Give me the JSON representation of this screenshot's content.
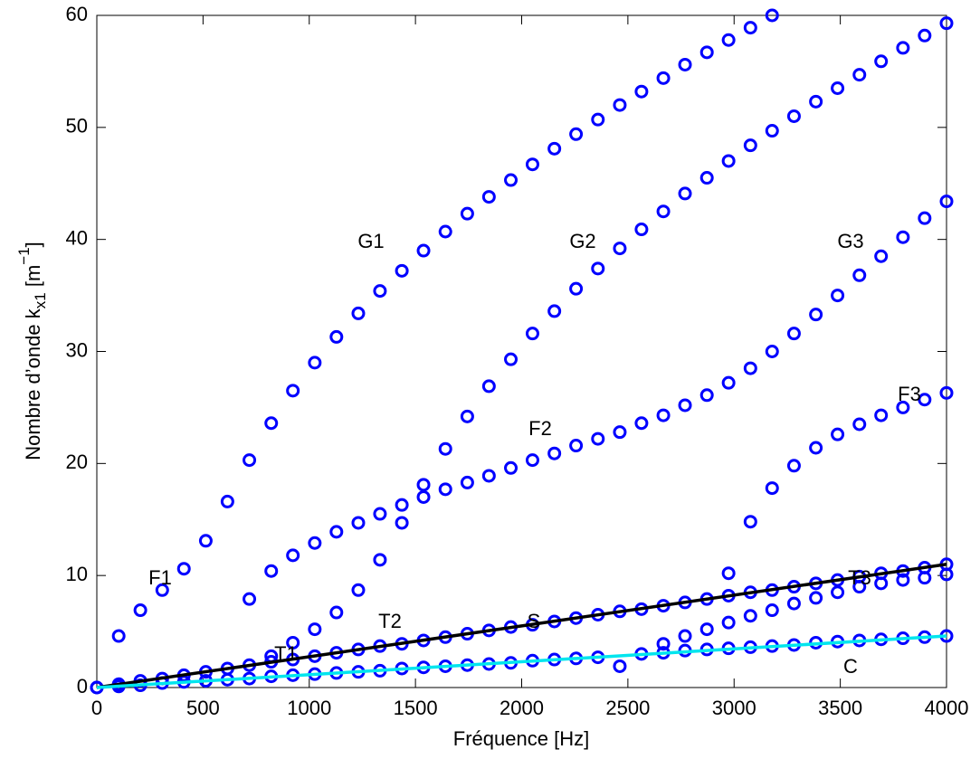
{
  "chart_data": {
    "type": "scatter",
    "xlabel": "Fréquence [Hz]",
    "ylabel": [
      "Nombre d’onde k",
      "x1",
      " [m",
      "−1",
      "]"
    ],
    "xlim": [
      0,
      4000
    ],
    "ylim": [
      0,
      60
    ],
    "xticks": [
      0,
      500,
      1000,
      1500,
      2000,
      2500,
      3000,
      3500,
      4000
    ],
    "yticks": [
      0,
      10,
      20,
      30,
      40,
      50,
      60
    ],
    "grid": false,
    "marker_color": "#0000ff",
    "series": [
      {
        "color": "#0000ff",
        "x": [
          103,
          205,
          308,
          410,
          513,
          615,
          718,
          821,
          923,
          1026,
          1128,
          1231,
          1333,
          1436,
          1538,
          1641,
          1744,
          1846,
          1949,
          2051,
          2154,
          2256,
          2359,
          2462,
          2564,
          2667,
          2769,
          2872,
          2974,
          3077,
          3179
        ],
        "values": [
          4.6,
          6.9,
          8.7,
          10.6,
          13.1,
          16.6,
          20.3,
          23.6,
          26.5,
          29.0,
          31.3,
          33.4,
          35.4,
          37.2,
          39.0,
          40.7,
          42.3,
          43.8,
          45.3,
          46.7,
          48.1,
          49.4,
          50.7,
          52.0,
          53.2,
          54.4,
          55.6,
          56.7,
          57.8,
          58.9,
          60.0
        ]
      },
      {
        "color": "#0000ff",
        "x": [
          718,
          821,
          923,
          1026,
          1128,
          1231,
          1333,
          1436,
          1538,
          1641,
          1744,
          1846,
          1949,
          2051,
          2154,
          2256,
          2359,
          2462,
          2564,
          2667,
          2769,
          2872,
          2974,
          3077,
          3179,
          3282,
          3385,
          3487,
          3590,
          3692,
          3795,
          3897,
          4000
        ],
        "values": [
          7.9,
          10.4,
          11.8,
          12.9,
          13.9,
          14.7,
          15.5,
          16.3,
          17.0,
          17.7,
          18.3,
          18.9,
          19.6,
          20.3,
          20.9,
          21.6,
          22.2,
          22.8,
          23.6,
          24.3,
          25.2,
          26.1,
          27.2,
          28.5,
          30.0,
          31.6,
          33.3,
          35.0,
          36.8,
          38.5,
          40.2,
          41.9,
          43.4
        ]
      },
      {
        "color": "#0000ff",
        "x": [
          821,
          923,
          1026,
          1128,
          1231,
          1333,
          1436,
          1538,
          1641,
          1744,
          1846,
          1949,
          2051,
          2154,
          2256,
          2359,
          2462,
          2564,
          2667,
          2769,
          2872,
          2974,
          3077,
          3179,
          3282,
          3385,
          3487,
          3590,
          3692,
          3795,
          3897,
          4000
        ],
        "values": [
          2.8,
          4.0,
          5.2,
          6.7,
          8.7,
          11.4,
          14.7,
          18.1,
          21.3,
          24.2,
          26.9,
          29.3,
          31.6,
          33.6,
          35.6,
          37.4,
          39.2,
          40.9,
          42.5,
          44.1,
          45.5,
          47.0,
          48.4,
          49.7,
          51.0,
          52.3,
          53.5,
          54.7,
          55.9,
          57.1,
          58.2,
          59.3
        ]
      },
      {
        "color": "#0000ff",
        "x": [
          2974,
          3077,
          3179,
          3282,
          3385,
          3487,
          3590,
          3692,
          3795,
          3897,
          4000
        ],
        "values": [
          10.2,
          14.8,
          17.8,
          19.8,
          21.4,
          22.6,
          23.5,
          24.3,
          25.0,
          25.7,
          26.3
        ]
      },
      {
        "color": "#0000ff",
        "x": [
          0,
          103,
          205,
          308,
          410,
          513,
          615,
          718,
          821,
          923,
          1026,
          1128,
          1231,
          1333,
          1436,
          1538,
          1641,
          1744,
          1846,
          1949,
          2051,
          2154,
          2256,
          2359,
          2462,
          2564,
          2667,
          2769,
          2872,
          2974,
          3077,
          3179,
          3282,
          3385,
          3487,
          3590,
          3692,
          3795,
          3897,
          4000
        ],
        "values": [
          0,
          0.3,
          0.6,
          0.8,
          1.1,
          1.4,
          1.7,
          2.0,
          2.3,
          2.5,
          2.8,
          3.1,
          3.4,
          3.7,
          3.9,
          4.2,
          4.5,
          4.8,
          5.1,
          5.4,
          5.6,
          5.9,
          6.2,
          6.5,
          6.8,
          7.0,
          7.3,
          7.6,
          7.9,
          8.2,
          8.5,
          8.7,
          9.0,
          9.3,
          9.6,
          9.9,
          10.2,
          10.4,
          10.7,
          11.0
        ]
      },
      {
        "color": "#0000ff",
        "x": [
          0,
          103,
          205,
          308,
          410,
          513,
          615,
          718,
          821,
          923,
          1026,
          1128,
          1231,
          1333,
          1436,
          1538,
          1641,
          1744,
          1846,
          1949,
          2051,
          2154,
          2256,
          2359,
          2462,
          2564,
          2667,
          2769,
          2872,
          2974,
          3077,
          3179,
          3282,
          3385,
          3487,
          3590,
          3692,
          3795,
          3897,
          4000
        ],
        "values": [
          0,
          0.1,
          0.2,
          0.4,
          0.5,
          0.6,
          0.7,
          0.8,
          1.0,
          1.1,
          1.2,
          1.3,
          1.4,
          1.5,
          1.7,
          1.8,
          1.9,
          2.0,
          2.1,
          2.2,
          2.4,
          2.5,
          2.6,
          2.7,
          1.9,
          3.0,
          3.1,
          3.3,
          3.4,
          3.5,
          3.6,
          3.7,
          3.8,
          4.0,
          4.1,
          4.2,
          4.3,
          4.4,
          4.5,
          4.6
        ]
      },
      {
        "color": "#0000ff",
        "x": [
          2667,
          2769,
          2872,
          2974,
          3077,
          3179,
          3282,
          3385,
          3487,
          3590,
          3692,
          3795,
          3897,
          4000
        ],
        "values": [
          3.9,
          4.6,
          5.2,
          5.8,
          6.4,
          6.9,
          7.5,
          8.0,
          8.5,
          9.0,
          9.3,
          9.6,
          9.8,
          10.1
        ]
      }
    ],
    "lines": [
      {
        "color": "#000000",
        "x": [
          0,
          4000
        ],
        "values": [
          0,
          11
        ]
      },
      {
        "color": "#00e5ee",
        "x": [
          0,
          4000
        ],
        "values": [
          0,
          4.6
        ]
      }
    ],
    "annotations": [
      "G1",
      "G2",
      "G3",
      "F1",
      "F2",
      "F3",
      "T1",
      "T2",
      "T3",
      "S",
      "C"
    ]
  }
}
